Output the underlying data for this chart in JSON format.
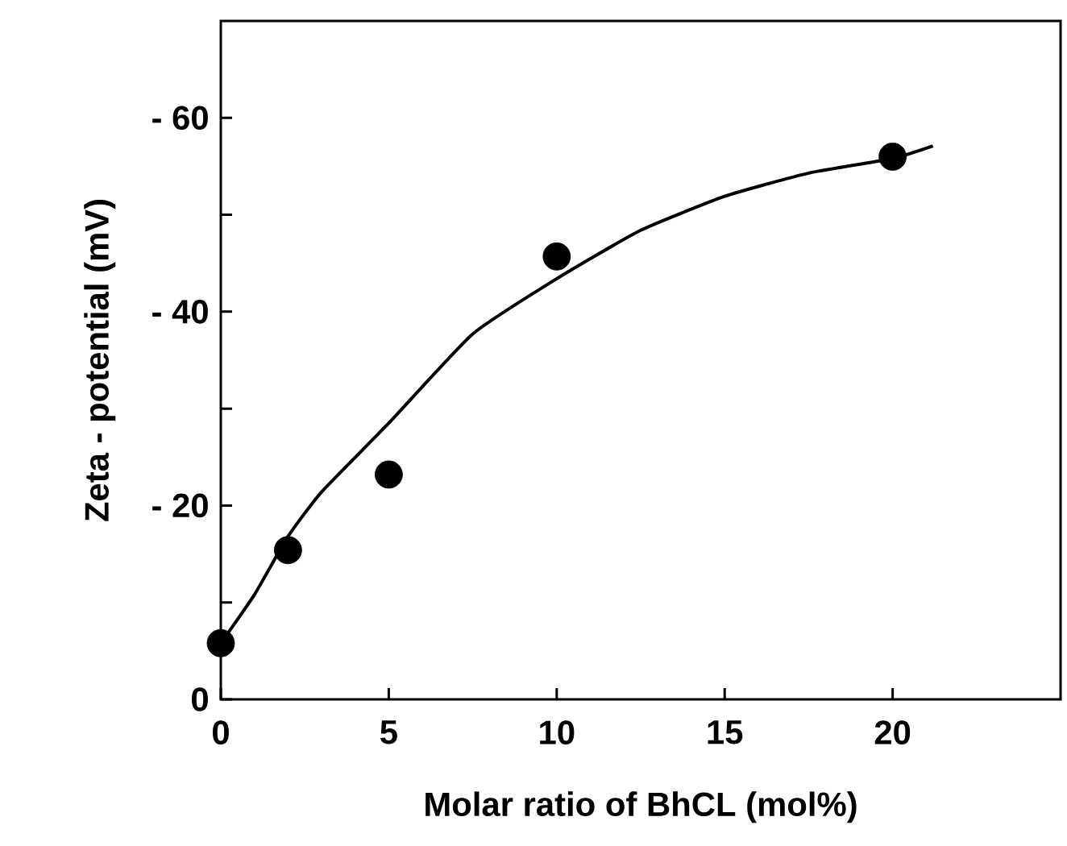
{
  "chart_data": {
    "type": "scatter",
    "xlabel": "Molar ratio of BhCL (mol%)",
    "ylabel": "Zeta - potential (mV)",
    "xlim": [
      0,
      25
    ],
    "ylim": [
      0,
      -70
    ],
    "xticks": [
      0,
      5,
      10,
      15,
      20
    ],
    "yticks": [
      0,
      {
        "value": -10,
        "label": null
      },
      {
        "value": -20,
        "label": "- 20"
      },
      {
        "value": -30,
        "label": null
      },
      {
        "value": -40,
        "label": "- 40"
      },
      {
        "value": -50,
        "label": null
      },
      {
        "value": -60,
        "label": "- 60"
      }
    ],
    "grid": false,
    "marker": "circle",
    "series": [
      {
        "color": "#000000",
        "x": [
          0,
          2,
          5,
          10,
          20
        ],
        "values": [
          -5.8,
          -15.4,
          -23.2,
          -45.7,
          -56.0
        ]
      },
      {
        "type": "line",
        "marker": "none",
        "line_style": "solid",
        "color": "#000000",
        "x": [
          0,
          1,
          2,
          3,
          5,
          7.5,
          10,
          12.5,
          15,
          17.5,
          20,
          21.2
        ],
        "values": [
          -5.8,
          -10.8,
          -16.8,
          -21.4,
          -28.5,
          -37.7,
          -43.4,
          -48.4,
          -51.9,
          -54.3,
          -55.8,
          -57.1
        ]
      }
    ]
  }
}
